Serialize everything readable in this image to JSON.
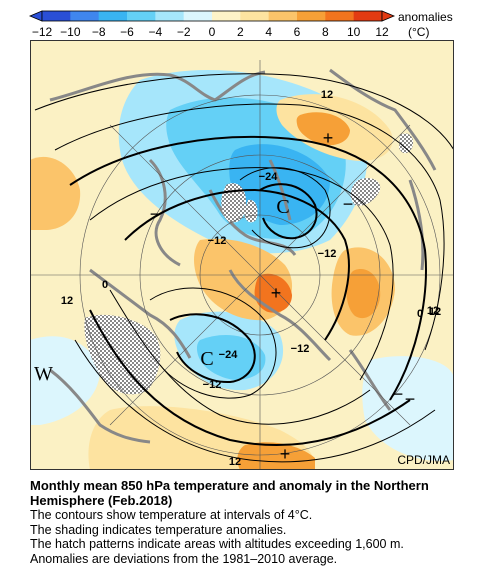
{
  "legend": {
    "label": "anomalies",
    "unit": "(°C)",
    "ticks": [
      "−12",
      "−10",
      "−8",
      "−6",
      "−4",
      "−2",
      "0",
      "2",
      "4",
      "6",
      "8",
      "10",
      "12"
    ],
    "colors": [
      "#2a4fd6",
      "#3f86ee",
      "#39b4f2",
      "#64d0f6",
      "#a6e6fb",
      "#dcf6fd",
      "#fdf3c8",
      "#fde3a0",
      "#fbc46a",
      "#f6a037",
      "#f2741e",
      "#e23b12"
    ]
  },
  "map": {
    "credit": "CPD/JMA",
    "contour_labels": [
      "12",
      "0",
      "−12",
      "−24",
      "−12",
      "0",
      "12",
      "12",
      "−12",
      "−24",
      "−12",
      "12",
      "12"
    ],
    "high_markers": [
      "+",
      "+",
      "+"
    ],
    "low_markers": [
      "−",
      "−",
      "−",
      "−"
    ],
    "center_markers": [
      "C",
      "C"
    ],
    "west_label": "W",
    "colors": {
      "land_bg": "#fbf1c4",
      "coast": "#888888",
      "contour": "#000000",
      "hatch": "#999999"
    }
  },
  "caption": {
    "title_line1": "Monthly mean 850 hPa temperature and anomaly in the Northern",
    "title_line2": "Hemisphere (Feb.2018)",
    "lines": [
      "The contours show temperature at intervals of 4°C.",
      "The shading indicates temperature anomalies.",
      "The hatch patterns indicate areas with altitudes exceeding 1,600 m.",
      "Anomalies are deviations from the 1981–2010 average."
    ]
  }
}
